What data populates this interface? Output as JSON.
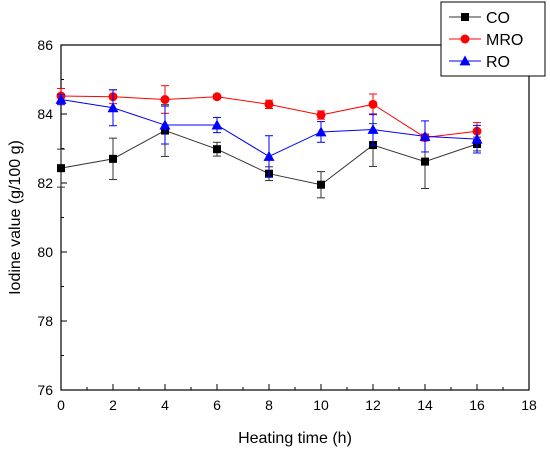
{
  "chart_data": {
    "type": "line",
    "xlabel": "Heating time (h)",
    "ylabel": "Iodine value (g/100 g)",
    "xlim": [
      0,
      18
    ],
    "ylim": [
      76,
      86
    ],
    "xticks": [
      0,
      2,
      4,
      6,
      8,
      10,
      12,
      14,
      16,
      18
    ],
    "yticks": [
      76,
      78,
      80,
      82,
      84,
      86
    ],
    "grid": false,
    "legend_position": "top-right",
    "x": [
      0,
      2,
      4,
      6,
      8,
      10,
      12,
      14,
      16
    ],
    "series": [
      {
        "name": "CO",
        "color": "#333333",
        "marker": "square",
        "values": [
          82.43,
          82.7,
          83.52,
          82.98,
          82.27,
          81.95,
          83.1,
          82.62,
          83.13
        ],
        "errors": [
          0.55,
          0.6,
          0.75,
          0.2,
          0.2,
          0.38,
          0.62,
          0.78,
          0.2
        ]
      },
      {
        "name": "MRO",
        "color": "#ff0000",
        "marker": "circle",
        "values": [
          84.52,
          84.5,
          84.42,
          84.5,
          84.28,
          83.97,
          84.28,
          83.32,
          83.5
        ],
        "errors": [
          0.22,
          0.2,
          0.4,
          0.05,
          0.12,
          0.12,
          0.3,
          0.1,
          0.25
        ]
      },
      {
        "name": "RO",
        "color": "#0000ff",
        "marker": "triangle",
        "values": [
          84.42,
          84.18,
          83.68,
          83.68,
          82.77,
          83.48,
          83.55,
          83.35,
          83.27
        ],
        "errors": [
          0.15,
          0.52,
          0.55,
          0.22,
          0.6,
          0.3,
          0.45,
          0.45,
          0.4
        ]
      }
    ]
  }
}
